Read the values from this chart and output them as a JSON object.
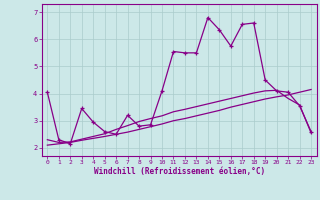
{
  "xlabel": "Windchill (Refroidissement éolien,°C)",
  "background_color": "#cce8e8",
  "grid_color": "#aacccc",
  "line_color": "#880088",
  "spine_color": "#880088",
  "xlim": [
    -0.5,
    23.5
  ],
  "ylim": [
    1.7,
    7.3
  ],
  "yticks": [
    2,
    3,
    4,
    5,
    6,
    7
  ],
  "xticks": [
    0,
    1,
    2,
    3,
    4,
    5,
    6,
    7,
    8,
    9,
    10,
    11,
    12,
    13,
    14,
    15,
    16,
    17,
    18,
    19,
    20,
    21,
    22,
    23
  ],
  "series1_x": [
    0,
    1,
    2,
    3,
    4,
    5,
    6,
    7,
    8,
    9,
    10,
    11,
    12,
    13,
    14,
    15,
    16,
    17,
    18,
    19,
    20,
    21,
    22,
    23
  ],
  "series1_y": [
    4.05,
    2.3,
    2.15,
    3.45,
    2.95,
    2.6,
    2.5,
    3.2,
    2.8,
    2.85,
    4.1,
    5.55,
    5.5,
    5.5,
    6.8,
    6.35,
    5.75,
    6.55,
    6.6,
    4.5,
    4.1,
    4.05,
    3.55,
    2.6
  ],
  "series2_x": [
    0,
    1,
    2,
    3,
    4,
    5,
    6,
    7,
    8,
    9,
    10,
    11,
    12,
    13,
    14,
    15,
    16,
    17,
    18,
    19,
    20,
    21,
    22,
    23
  ],
  "series2_y": [
    2.1,
    2.15,
    2.2,
    2.28,
    2.35,
    2.42,
    2.5,
    2.58,
    2.68,
    2.78,
    2.88,
    3.0,
    3.08,
    3.18,
    3.28,
    3.38,
    3.5,
    3.6,
    3.7,
    3.8,
    3.88,
    3.95,
    4.05,
    4.15
  ],
  "series3_x": [
    0,
    1,
    2,
    3,
    4,
    5,
    6,
    7,
    8,
    9,
    10,
    11,
    12,
    13,
    14,
    15,
    16,
    17,
    18,
    19,
    20,
    21,
    22,
    23
  ],
  "series3_y": [
    2.3,
    2.2,
    2.22,
    2.32,
    2.42,
    2.52,
    2.68,
    2.82,
    2.97,
    3.08,
    3.18,
    3.33,
    3.42,
    3.52,
    3.62,
    3.72,
    3.82,
    3.92,
    4.02,
    4.1,
    4.12,
    3.82,
    3.58,
    2.55
  ]
}
